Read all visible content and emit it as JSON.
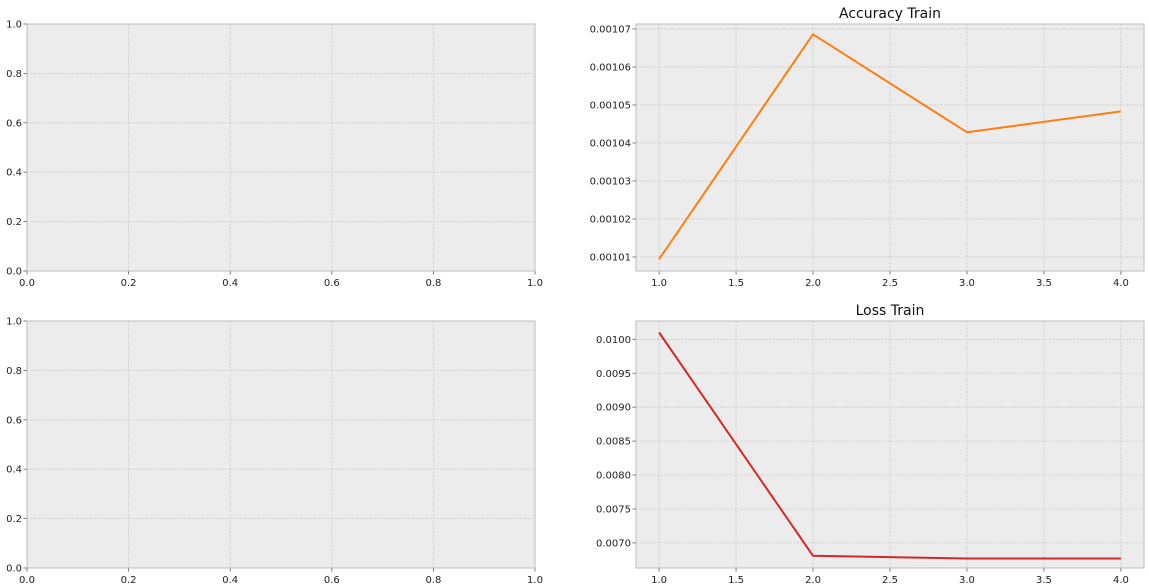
{
  "chart_data": [
    {
      "type": "line",
      "title": "",
      "xlabel": "",
      "ylabel": "",
      "xlim": [
        0,
        1
      ],
      "ylim": [
        0,
        1
      ],
      "xticks": [
        "0.0",
        "0.2",
        "0.4",
        "0.6",
        "0.8",
        "1.0"
      ],
      "yticks": [
        "0.0",
        "0.2",
        "0.4",
        "0.6",
        "0.8",
        "1.0"
      ],
      "grid": true,
      "series": []
    },
    {
      "type": "line",
      "title": "Accuracy Train",
      "xlabel": "",
      "ylabel": "",
      "xlim": [
        0.85,
        4.15
      ],
      "ylim": [
        0.0010063,
        0.0010713
      ],
      "xticks": [
        "1.0",
        "1.5",
        "2.0",
        "2.5",
        "3.0",
        "3.5",
        "4.0"
      ],
      "yticks": [
        "0.00101",
        "0.00102",
        "0.00103",
        "0.00104",
        "0.00105",
        "0.00106",
        "0.00107"
      ],
      "grid": true,
      "series": [
        {
          "color": "#ff7f0e",
          "x": [
            1,
            2,
            3,
            4
          ],
          "y": [
            0.0010094,
            0.0010686,
            0.0010428,
            0.0010483
          ]
        }
      ]
    },
    {
      "type": "line",
      "title": "",
      "xlabel": "",
      "ylabel": "",
      "xlim": [
        0,
        1
      ],
      "ylim": [
        0,
        1
      ],
      "xticks": [
        "0.0",
        "0.2",
        "0.4",
        "0.6",
        "0.8",
        "1.0"
      ],
      "yticks": [
        "0.0",
        "0.2",
        "0.4",
        "0.6",
        "0.8",
        "1.0"
      ],
      "grid": true,
      "series": []
    },
    {
      "type": "line",
      "title": "Loss Train",
      "xlabel": "",
      "ylabel": "",
      "xlim": [
        0.85,
        4.15
      ],
      "ylim": [
        0.00663,
        0.01027
      ],
      "xticks": [
        "1.0",
        "1.5",
        "2.0",
        "2.5",
        "3.0",
        "3.5",
        "4.0"
      ],
      "yticks": [
        "0.0070",
        "0.0075",
        "0.0080",
        "0.0085",
        "0.0090",
        "0.0095",
        "0.0100"
      ],
      "grid": true,
      "series": [
        {
          "color": "#d62728",
          "x": [
            1,
            2,
            3,
            4
          ],
          "y": [
            0.0101,
            0.00681,
            0.00677,
            0.00677
          ]
        }
      ]
    }
  ],
  "style": {
    "axes_background": "#ececec",
    "grid_color": "#c8c8c8",
    "spine_color": "#bcbcbc"
  }
}
